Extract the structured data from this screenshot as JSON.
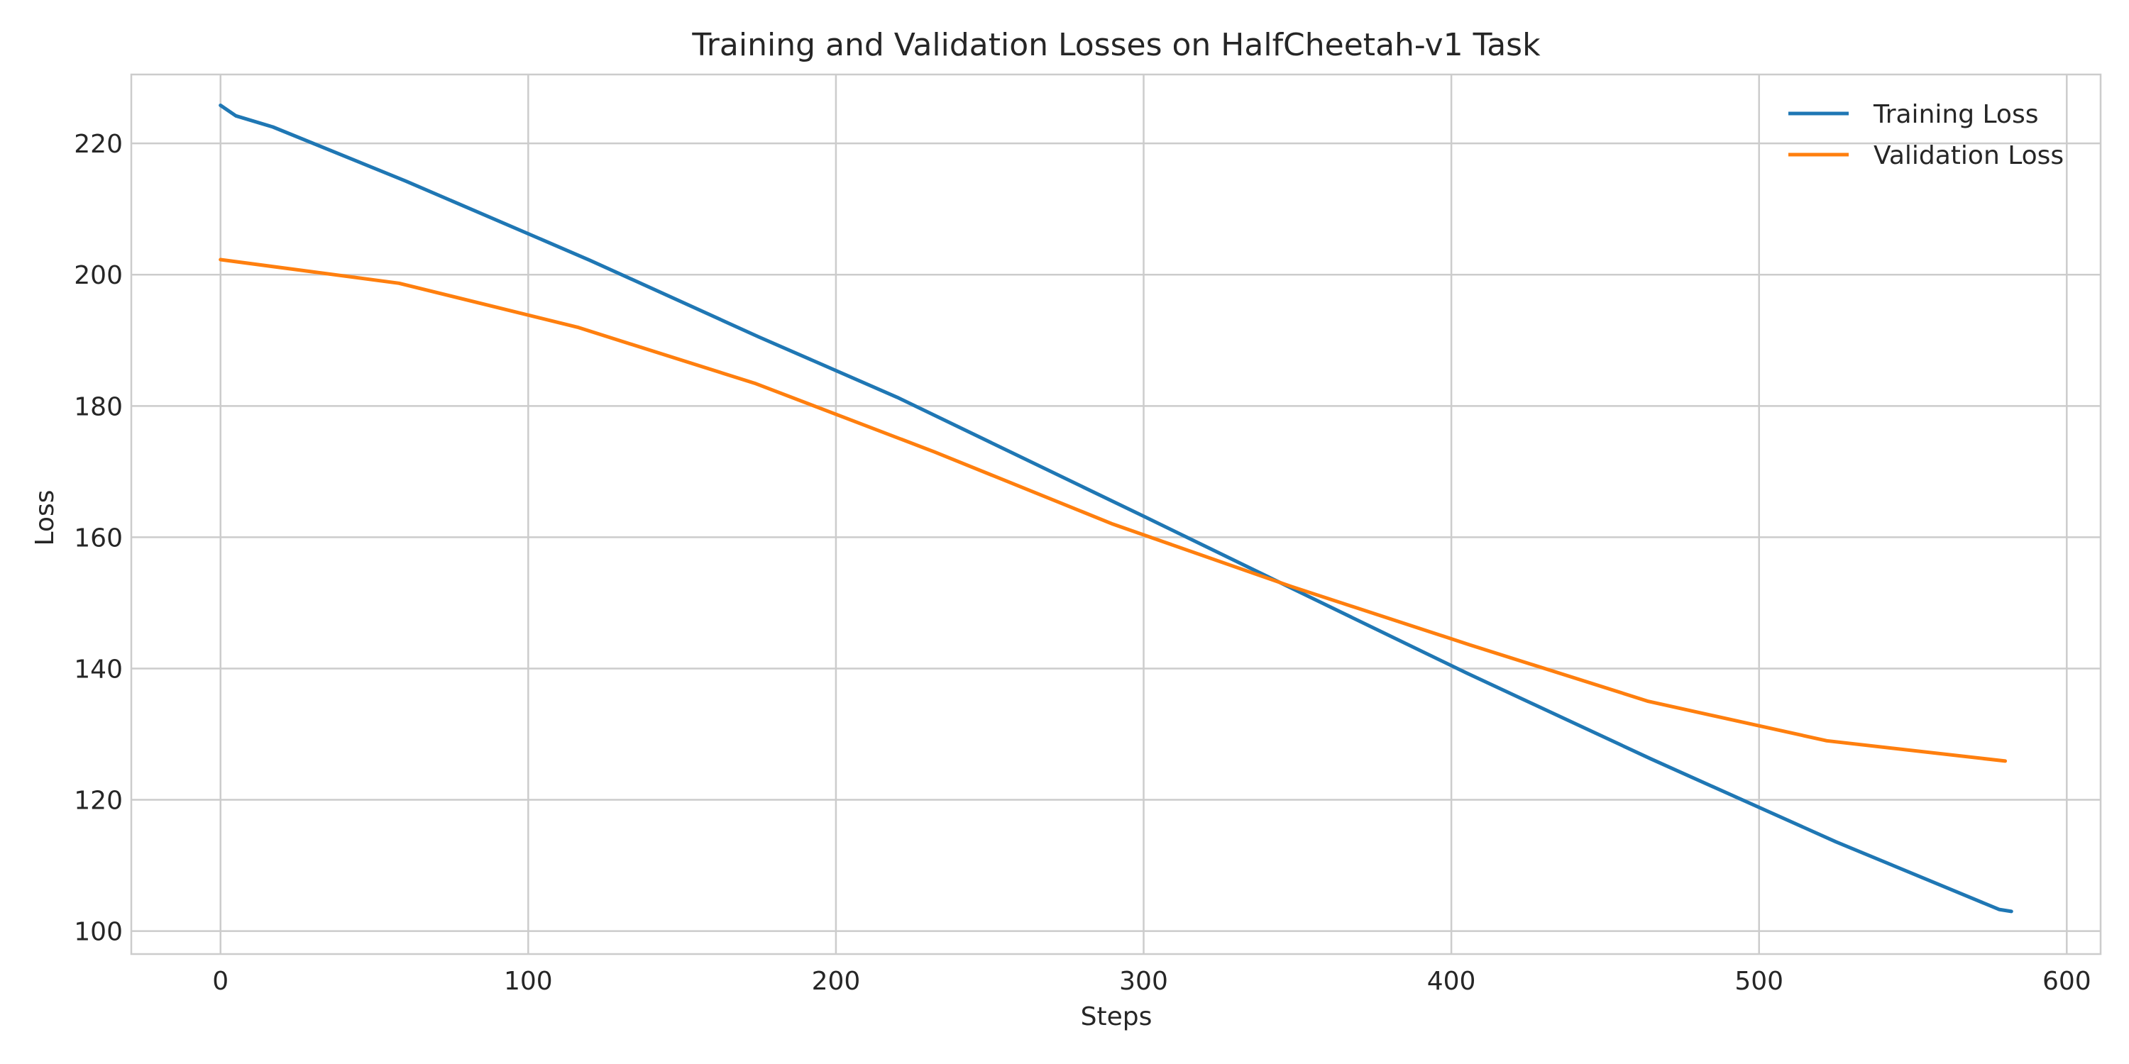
{
  "chart_data": {
    "type": "line",
    "title": "Training and Validation Losses on HalfCheetah-v1 Task",
    "xlabel": "Steps",
    "ylabel": "Loss",
    "xlim": [
      -29,
      611
    ],
    "ylim": [
      96.5,
      230.5
    ],
    "xticks": [
      0,
      100,
      200,
      300,
      400,
      500,
      600
    ],
    "yticks": [
      100,
      120,
      140,
      160,
      180,
      200,
      220
    ],
    "grid": true,
    "legend_position": "top-right",
    "series": [
      {
        "name": "Training Loss",
        "color": "#1f77b4",
        "x": [
          0,
          5,
          17,
          60,
          120,
          175,
          220,
          300,
          350,
          405,
          465,
          525,
          578,
          582
        ],
        "y": [
          225.8,
          224.2,
          222.5,
          214.3,
          202.2,
          190.5,
          181.3,
          163.2,
          151.8,
          139.3,
          126.2,
          113.6,
          103.3,
          103.0
        ]
      },
      {
        "name": "Validation Loss",
        "color": "#ff7f0e",
        "x": [
          0,
          58,
          116,
          174,
          232,
          290,
          348,
          406,
          464,
          522,
          580
        ],
        "y": [
          202.3,
          198.7,
          192.0,
          183.4,
          173.0,
          162.0,
          152.5,
          143.6,
          135.0,
          129.0,
          125.9
        ]
      }
    ]
  }
}
